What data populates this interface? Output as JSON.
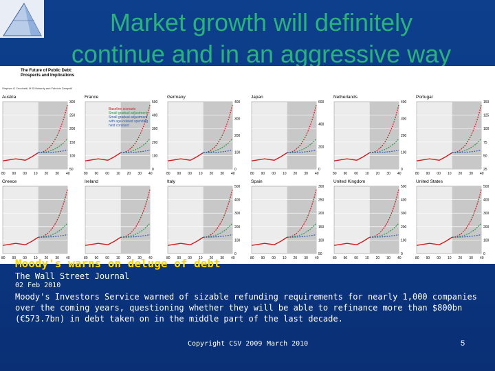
{
  "slide": {
    "title_line1": "Market growth will definitely",
    "title_line2": "continue and in an aggressive way",
    "headline": "Moody's warns on deluge of debt",
    "source": "The Wall Street Journal",
    "date": "02 Feb 2010",
    "body": "Moody's Investors Service warned of sizable refunding requirements for nearly 1,000 companies over the coming years, questioning whether they will be able to refinance more than $800bn (€573.7bn) in debt taken on in the middle part of the last decade.",
    "copyright": "Copyright CSV 2009",
    "month": "March 2010",
    "page_number": "5"
  },
  "figure": {
    "header_line1": "The Future of Public Debt:",
    "header_line2": "Prospects and Implications",
    "authors": "Stephen G Cecchetti, M S Mohanty and Fabrizio Zampolli",
    "legend": [
      "Baseline scenario",
      "Small gradual adjustment",
      "Small gradual adjustment with age-related spending held constant"
    ],
    "colors": {
      "baseline": "#cc1f1f",
      "adjust": "#2a9d4a",
      "aging": "#2b5fb3",
      "hist": "#cc1f1f"
    },
    "panels": [
      {
        "label": "Austria",
        "ticks": [
          "300",
          "250",
          "200",
          "150",
          "100",
          "50"
        ]
      },
      {
        "label": "France",
        "ticks": [
          "500",
          "400",
          "300",
          "200",
          "100",
          "0"
        ]
      },
      {
        "label": "Germany",
        "ticks": [
          "400",
          "300",
          "200",
          "100",
          "0"
        ]
      },
      {
        "label": "Japan",
        "ticks": [
          "600",
          "400",
          "200",
          "0"
        ]
      },
      {
        "label": "Netherlands",
        "ticks": [
          "400",
          "300",
          "200",
          "100",
          "0"
        ]
      },
      {
        "label": "Portugal",
        "ticks": [
          "150",
          "125",
          "100",
          "75",
          "50",
          "25"
        ]
      },
      {
        "label": "Greece",
        "ticks": []
      },
      {
        "label": "Ireland",
        "ticks": []
      },
      {
        "label": "Italy",
        "ticks": [
          "500",
          "400",
          "300",
          "200",
          "100",
          "0"
        ]
      },
      {
        "label": "Spain",
        "ticks": [
          "300",
          "250",
          "200",
          "150",
          "100",
          "50"
        ]
      },
      {
        "label": "United Kingdom",
        "ticks": [
          "500",
          "400",
          "300",
          "200",
          "100",
          "0"
        ]
      },
      {
        "label": "United States",
        "ticks": [
          "500",
          "400",
          "300",
          "200",
          "100",
          "0"
        ]
      }
    ],
    "x_ticks": [
      "80",
      "90",
      "00",
      "10",
      "20",
      "30",
      "40"
    ]
  }
}
